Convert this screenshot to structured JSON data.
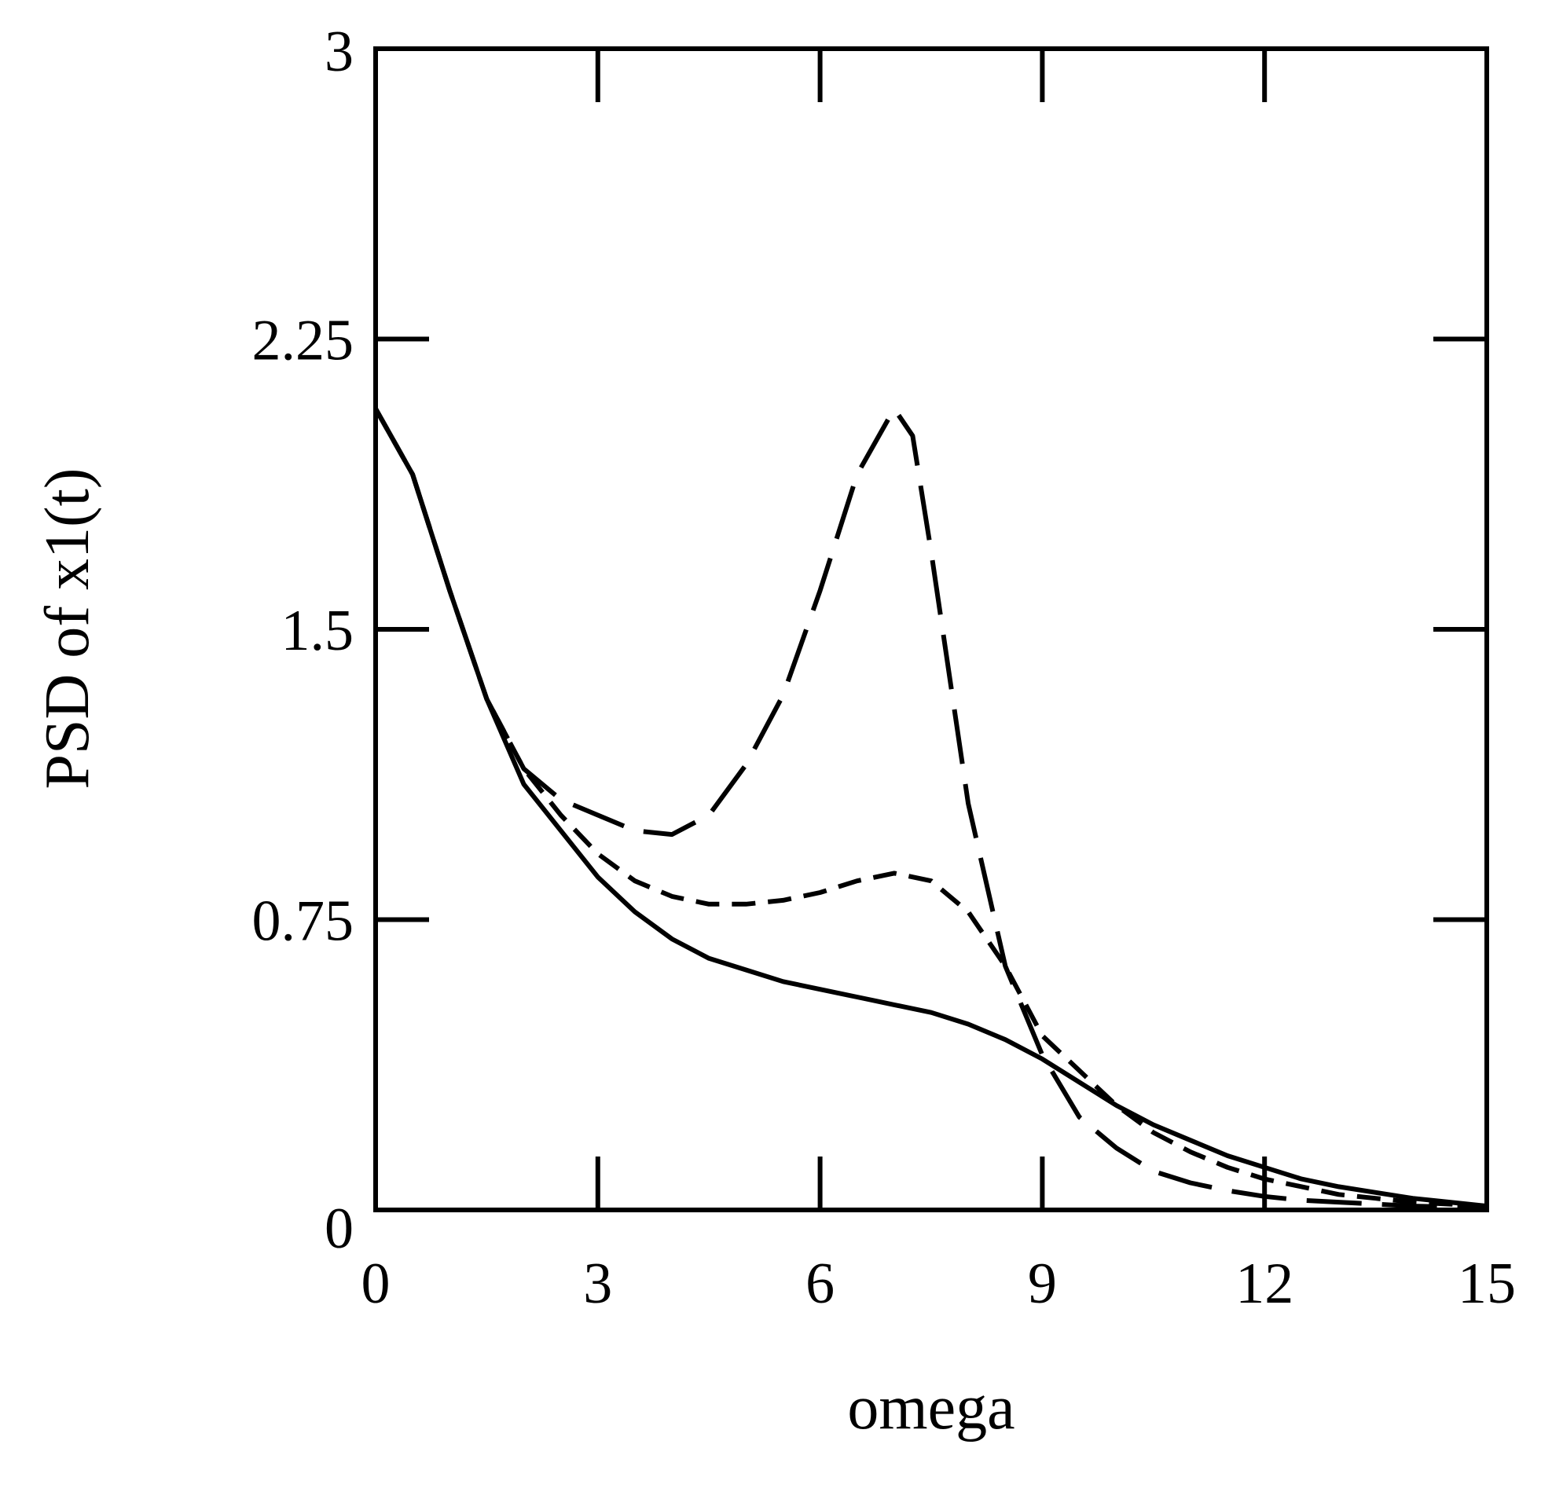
{
  "chart_data": {
    "type": "line",
    "title": "",
    "xlabel": "omega",
    "ylabel": "PSD of x1(t)",
    "xlim": [
      0,
      15
    ],
    "ylim": [
      0,
      3
    ],
    "x_ticks": [
      0,
      3,
      6,
      9,
      12,
      15
    ],
    "y_ticks": [
      0,
      0.75,
      1.5,
      2.25,
      3
    ],
    "x_tick_labels": [
      "0",
      "3",
      "6",
      "9",
      "12",
      "15"
    ],
    "y_tick_labels": [
      "0",
      "0.75",
      "1.5",
      "2.25",
      "3"
    ],
    "grid": false,
    "legend": "none",
    "series": [
      {
        "name": "solid",
        "style": "solid",
        "x": [
          0,
          0.5,
          1,
          1.5,
          2,
          2.5,
          3,
          3.5,
          4,
          4.5,
          5,
          5.5,
          6,
          6.5,
          7,
          7.5,
          8,
          8.5,
          9,
          9.5,
          10,
          10.5,
          11,
          11.5,
          12,
          12.5,
          13,
          13.5,
          14,
          14.5,
          15
        ],
        "values": [
          2.07,
          1.9,
          1.6,
          1.32,
          1.1,
          0.98,
          0.86,
          0.77,
          0.7,
          0.65,
          0.62,
          0.59,
          0.57,
          0.55,
          0.53,
          0.51,
          0.48,
          0.44,
          0.39,
          0.33,
          0.27,
          0.22,
          0.18,
          0.14,
          0.11,
          0.08,
          0.06,
          0.045,
          0.03,
          0.02,
          0.01
        ]
      },
      {
        "name": "short-dashed",
        "style": "dashed",
        "x": [
          0,
          0.5,
          1,
          1.5,
          2,
          2.5,
          3,
          3.5,
          4,
          4.5,
          5,
          5.5,
          6,
          6.5,
          7,
          7.5,
          8,
          8.5,
          9,
          9.5,
          10,
          10.5,
          11,
          11.5,
          12,
          12.5,
          13,
          13.5,
          14,
          14.5,
          15
        ],
        "values": [
          2.07,
          1.9,
          1.6,
          1.32,
          1.14,
          1.02,
          0.92,
          0.85,
          0.81,
          0.79,
          0.79,
          0.8,
          0.82,
          0.85,
          0.87,
          0.85,
          0.77,
          0.63,
          0.45,
          0.36,
          0.27,
          0.2,
          0.15,
          0.11,
          0.08,
          0.06,
          0.04,
          0.03,
          0.02,
          0.015,
          0.01
        ]
      },
      {
        "name": "long-dashed",
        "style": "long-dashed",
        "x": [
          0,
          0.5,
          1,
          1.5,
          2,
          2.5,
          3,
          3.5,
          4,
          4.5,
          5,
          5.5,
          6,
          6.5,
          7,
          7.25,
          7.5,
          8,
          8.25,
          8.5,
          9,
          9.5,
          10,
          10.5,
          11,
          11.5,
          12,
          12.5,
          13,
          13.5,
          14,
          14.5,
          15
        ],
        "values": [
          2.07,
          1.9,
          1.6,
          1.32,
          1.14,
          1.06,
          1.02,
          0.98,
          0.97,
          1.02,
          1.15,
          1.33,
          1.6,
          1.9,
          2.07,
          2.0,
          1.7,
          1.05,
          0.84,
          0.63,
          0.4,
          0.24,
          0.16,
          0.1,
          0.07,
          0.05,
          0.035,
          0.025,
          0.02,
          0.015,
          0.01,
          0.008,
          0.005
        ]
      }
    ]
  }
}
